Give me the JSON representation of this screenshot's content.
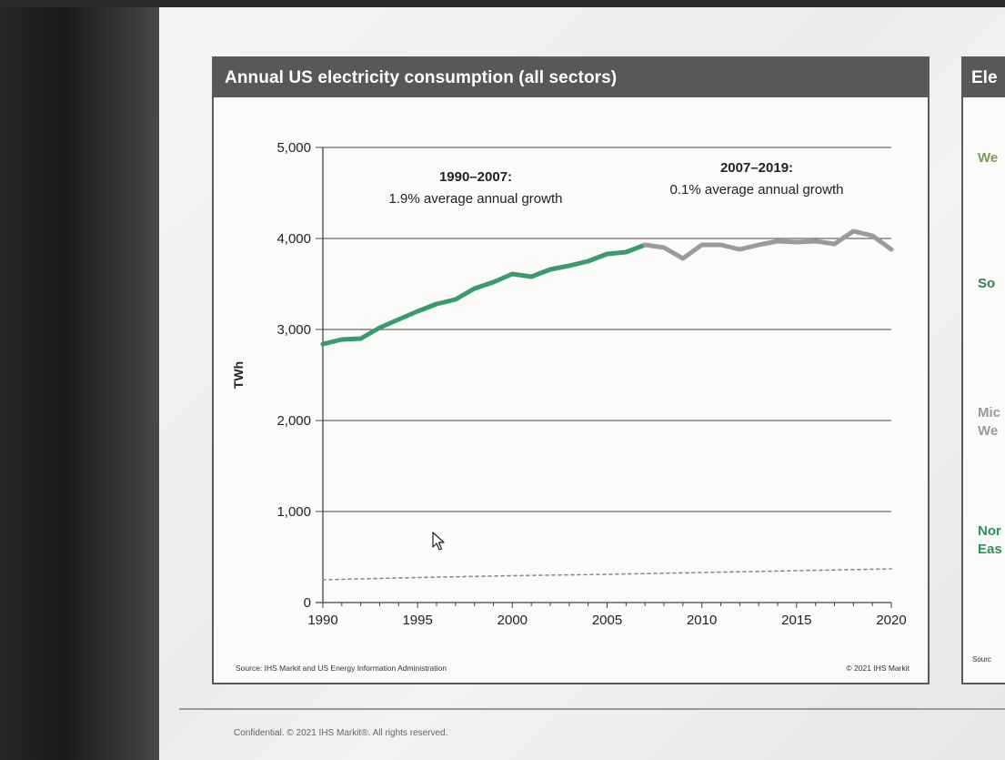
{
  "panel": {
    "title": "Annual US electricity consumption (all sectors)",
    "source": "Source: IHS Markit and US Energy Information Administration",
    "copyright": "© 2021 IHS Markit"
  },
  "annotations": [
    {
      "title": "1990–2007:",
      "text": "1.9% average annual growth"
    },
    {
      "title": "2007–2019:",
      "text": "0.1% average annual growth"
    }
  ],
  "side_panel": {
    "title": "Ele",
    "labels": [
      {
        "text": "We",
        "color": "#7a9a55"
      },
      {
        "text": "So",
        "color": "#2f7f5a"
      },
      {
        "text": "Mic\nWe",
        "color": "#9a9a9a"
      },
      {
        "text": "Nor\nEas",
        "color": "#2f8f5a"
      }
    ],
    "source": "Sourc"
  },
  "footer": "Confidential. © 2021 IHS Markit®. All rights reserved.",
  "chart_data": {
    "type": "line",
    "title": "Annual US electricity consumption (all sectors)",
    "ylabel": "TWh",
    "xlabel": "",
    "xlim": [
      1990,
      2020
    ],
    "ylim": [
      0,
      5000
    ],
    "xticks": [
      1990,
      1995,
      2000,
      2005,
      2010,
      2015,
      2020
    ],
    "yticks": [
      0,
      1000,
      2000,
      3000,
      4000,
      5000
    ],
    "ytick_labels": [
      "0",
      "1,000",
      "2,000",
      "3,000",
      "4,000",
      "5,000"
    ],
    "grid": true,
    "series": [
      {
        "color": "#3a9a6e",
        "style": "solid",
        "x": [
          1990,
          1991,
          1992,
          1993,
          1994,
          1995,
          1996,
          1997,
          1998,
          1999,
          2000,
          2001,
          2002,
          2003,
          2004,
          2005,
          2006,
          2007
        ],
        "y": [
          2840,
          2890,
          2900,
          3020,
          3110,
          3200,
          3280,
          3330,
          3450,
          3520,
          3610,
          3580,
          3660,
          3700,
          3750,
          3830,
          3850,
          3930
        ]
      },
      {
        "color": "#9b9b9b",
        "style": "solid",
        "x": [
          2007,
          2008,
          2009,
          2010,
          2011,
          2012,
          2013,
          2014,
          2015,
          2016,
          2017,
          2018,
          2019
        ],
        "y": [
          3930,
          3900,
          3780,
          3930,
          3930,
          3880,
          3930,
          3970,
          3960,
          3970,
          3940,
          4080,
          4030
        ]
      },
      {
        "color": "#9b9b9b",
        "style": "solid",
        "x": [
          2019,
          2020
        ],
        "y": [
          4030,
          3880
        ]
      },
      {
        "color": "#8a8a8a",
        "style": "dotted",
        "x": [
          1990,
          1995,
          2000,
          2005,
          2010,
          2015,
          2020
        ],
        "y": [
          250,
          275,
          295,
          310,
          330,
          350,
          370
        ]
      }
    ]
  }
}
